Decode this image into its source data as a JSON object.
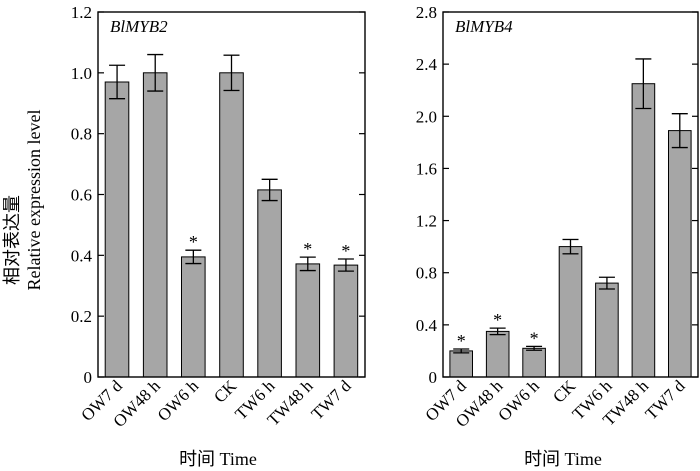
{
  "ylabel_cn": "相对表达量",
  "ylabel_en": "Relative expression level",
  "chart_data": [
    {
      "type": "bar",
      "title": "BlMYB2",
      "xlabel": "时间  Time",
      "ylabel": "相对表达量 Relative expression level",
      "categories": [
        "OW7 d",
        "OW48 h",
        "OW6 h",
        "CK",
        "TW6 h",
        "TW48 h",
        "TW7 d"
      ],
      "values": [
        0.97,
        1.0,
        0.395,
        1.0,
        0.615,
        0.372,
        0.368
      ],
      "errors": [
        0.055,
        0.06,
        0.022,
        0.058,
        0.035,
        0.022,
        0.02
      ],
      "significant": [
        "",
        "",
        "*",
        "",
        "",
        "*",
        "*"
      ],
      "ylim": [
        0,
        1.2
      ],
      "yticks": [
        0,
        0.2,
        0.4,
        0.6,
        0.8,
        1.0,
        1.2
      ],
      "ytick_labels": [
        "0",
        "0.2",
        "0.4",
        "0.6",
        "0.8",
        "1.0",
        "1.2"
      ],
      "grid": false
    },
    {
      "type": "bar",
      "title": "BlMYB4",
      "xlabel": "时间  Time",
      "ylabel": "",
      "categories": [
        "OW7 d",
        "OW48 h",
        "OW6 h",
        "CK",
        "TW6 h",
        "TW48 h",
        "TW7 d"
      ],
      "values": [
        0.2,
        0.35,
        0.22,
        1.0,
        0.72,
        2.25,
        1.89
      ],
      "errors": [
        0.015,
        0.025,
        0.015,
        0.055,
        0.045,
        0.19,
        0.13
      ],
      "significant": [
        "*",
        "*",
        "*",
        "",
        "",
        "",
        ""
      ],
      "ylim": [
        0,
        2.8
      ],
      "yticks": [
        0,
        0.4,
        0.8,
        1.2,
        1.6,
        2.0,
        2.4,
        2.8
      ],
      "ytick_labels": [
        "0",
        "0.4",
        "0.8",
        "1.2",
        "1.6",
        "2.0",
        "2.4",
        "2.8"
      ],
      "grid": false
    }
  ]
}
